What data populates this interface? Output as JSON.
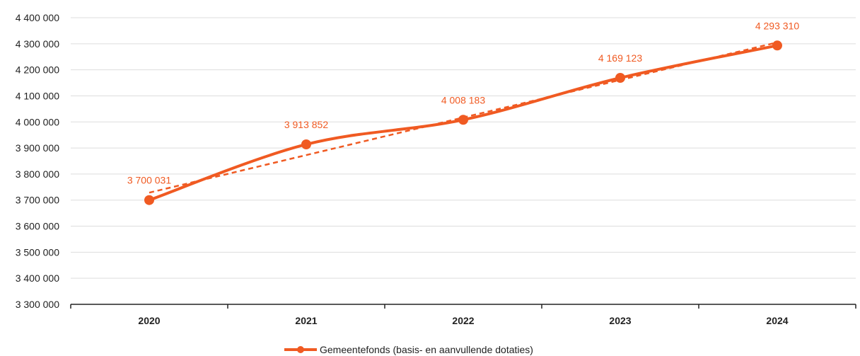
{
  "chart_data": {
    "type": "line",
    "title": "",
    "xlabel": "",
    "ylabel": "",
    "categories": [
      "2020",
      "2021",
      "2022",
      "2023",
      "2024"
    ],
    "series": [
      {
        "name": "Gemeentefonds (basis- en aanvullende dotaties)",
        "values": [
          3700031,
          3913852,
          4008183,
          4169123,
          4293310
        ],
        "labels": [
          "3 700 031",
          "3 913 852",
          "4 008 183",
          "4 169 123",
          "4 293 310"
        ],
        "color": "#f05a22",
        "marker": "circle"
      }
    ],
    "trendline": {
      "style": "dashed",
      "color": "#f05a22"
    },
    "ylim": [
      3300000,
      4400000
    ],
    "yticks": [
      3300000,
      3400000,
      3500000,
      3600000,
      3700000,
      3800000,
      3900000,
      4000000,
      4100000,
      4200000,
      4300000,
      4400000
    ],
    "ytick_labels": [
      "3 300 000",
      "3 400 000",
      "3 500 000",
      "3 600 000",
      "3 700 000",
      "3 800 000",
      "3 900 000",
      "4 000 000",
      "4 100 000",
      "4 200 000",
      "4 300 000",
      "4 400 000"
    ],
    "grid": true,
    "legend": "bottom-center",
    "colors": {
      "series": "#f05a22",
      "grid": "#dddddd",
      "axis": "#222222",
      "text": "#222222"
    }
  }
}
